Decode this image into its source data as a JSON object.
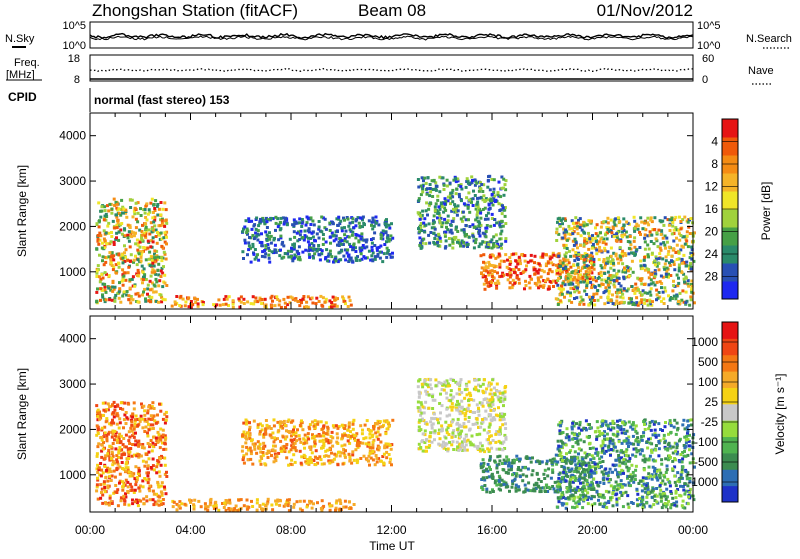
{
  "header": {
    "station": "Zhongshan Station (fitACF)",
    "beam": "Beam 08",
    "date": "01/Nov/2012"
  },
  "strip_nsky": {
    "left_label": "N.Sky",
    "right_label": "N.Search",
    "left_ticks": [
      "10^5",
      "10^0"
    ],
    "right_ticks": [
      "10^5",
      "10^0"
    ]
  },
  "strip_freq": {
    "left_label_1": "Freq.",
    "left_label_2": "[MHz]",
    "right_label": "Nave",
    "left_ticks": [
      "18",
      "8"
    ],
    "right_ticks": [
      "60",
      "0"
    ]
  },
  "cpid": {
    "label": "CPID",
    "value": "normal (fast stereo) 153"
  },
  "chart_data": [
    {
      "type": "heatmap",
      "panel": "power",
      "ylabel": "Slant Range [km]",
      "ylim": [
        180,
        4500
      ],
      "yticks": [
        "1000",
        "2000",
        "3000",
        "4000"
      ],
      "xlim": [
        0,
        24
      ],
      "colorbar_label": "Power [dB]",
      "colorbar_ticks": [
        "4",
        "8",
        "12",
        "16",
        "20",
        "24",
        "28"
      ],
      "colorbar_colors": [
        "#1e28f0",
        "#2850b4",
        "#2a8a6a",
        "#46a046",
        "#a0d23c",
        "#f0e628",
        "#f5b428",
        "#f58c14",
        "#f05a0a",
        "#e61414"
      ],
      "features": [
        {
          "t": [
            0.2,
            3.0
          ],
          "r": [
            300,
            2600
          ],
          "level": [
            0.2,
            0.95
          ]
        },
        {
          "t": [
            3.2,
            10.5
          ],
          "r": [
            200,
            450
          ],
          "level": [
            0.55,
            1.0
          ]
        },
        {
          "t": [
            6.0,
            12.0
          ],
          "r": [
            1200,
            2200
          ],
          "level": [
            0.0,
            0.35
          ]
        },
        {
          "t": [
            13.0,
            16.5
          ],
          "r": [
            1500,
            3100
          ],
          "level": [
            0.05,
            0.5
          ]
        },
        {
          "t": [
            15.5,
            20.0
          ],
          "r": [
            600,
            1400
          ],
          "level": [
            0.6,
            1.0
          ]
        },
        {
          "t": [
            18.5,
            24.0
          ],
          "r": [
            250,
            2200
          ],
          "level": [
            0.1,
            0.85
          ]
        }
      ]
    },
    {
      "type": "heatmap",
      "panel": "velocity",
      "ylabel": "Slant Range [km]",
      "ylim": [
        180,
        4500
      ],
      "yticks": [
        "1000",
        "2000",
        "3000",
        "4000"
      ],
      "xlim": [
        0,
        24
      ],
      "colorbar_label": "Velocity [m s⁻¹]",
      "colorbar_ticks": [
        "1000",
        "500",
        "100",
        "25",
        "-25",
        "-100",
        "-500",
        "-1000"
      ],
      "colorbar_colors": [
        "#1e32c8",
        "#2d6eb4",
        "#3c8c50",
        "#50b450",
        "#96dc3c",
        "#c8c8c8",
        "#f5d214",
        "#f5aa28",
        "#f57814",
        "#f04614",
        "#e61414"
      ],
      "features": [
        {
          "t": [
            0.2,
            3.0
          ],
          "r": [
            300,
            2600
          ],
          "level": [
            0.55,
            0.95
          ]
        },
        {
          "t": [
            3.2,
            10.5
          ],
          "r": [
            200,
            450
          ],
          "level": [
            0.6,
            0.8
          ]
        },
        {
          "t": [
            6.0,
            12.0
          ],
          "r": [
            1200,
            2200
          ],
          "level": [
            0.55,
            0.85
          ]
        },
        {
          "t": [
            13.0,
            16.5
          ],
          "r": [
            1500,
            3100
          ],
          "level": [
            0.4,
            0.6
          ]
        },
        {
          "t": [
            15.5,
            20.0
          ],
          "r": [
            600,
            1400
          ],
          "level": [
            0.15,
            0.3
          ]
        },
        {
          "t": [
            18.5,
            24.0
          ],
          "r": [
            250,
            2200
          ],
          "level": [
            0.05,
            0.45
          ]
        }
      ]
    }
  ],
  "xaxis": {
    "label": "Time UT",
    "ticks": [
      "00:00",
      "04:00",
      "08:00",
      "12:00",
      "16:00",
      "20:00",
      "00:00"
    ]
  }
}
